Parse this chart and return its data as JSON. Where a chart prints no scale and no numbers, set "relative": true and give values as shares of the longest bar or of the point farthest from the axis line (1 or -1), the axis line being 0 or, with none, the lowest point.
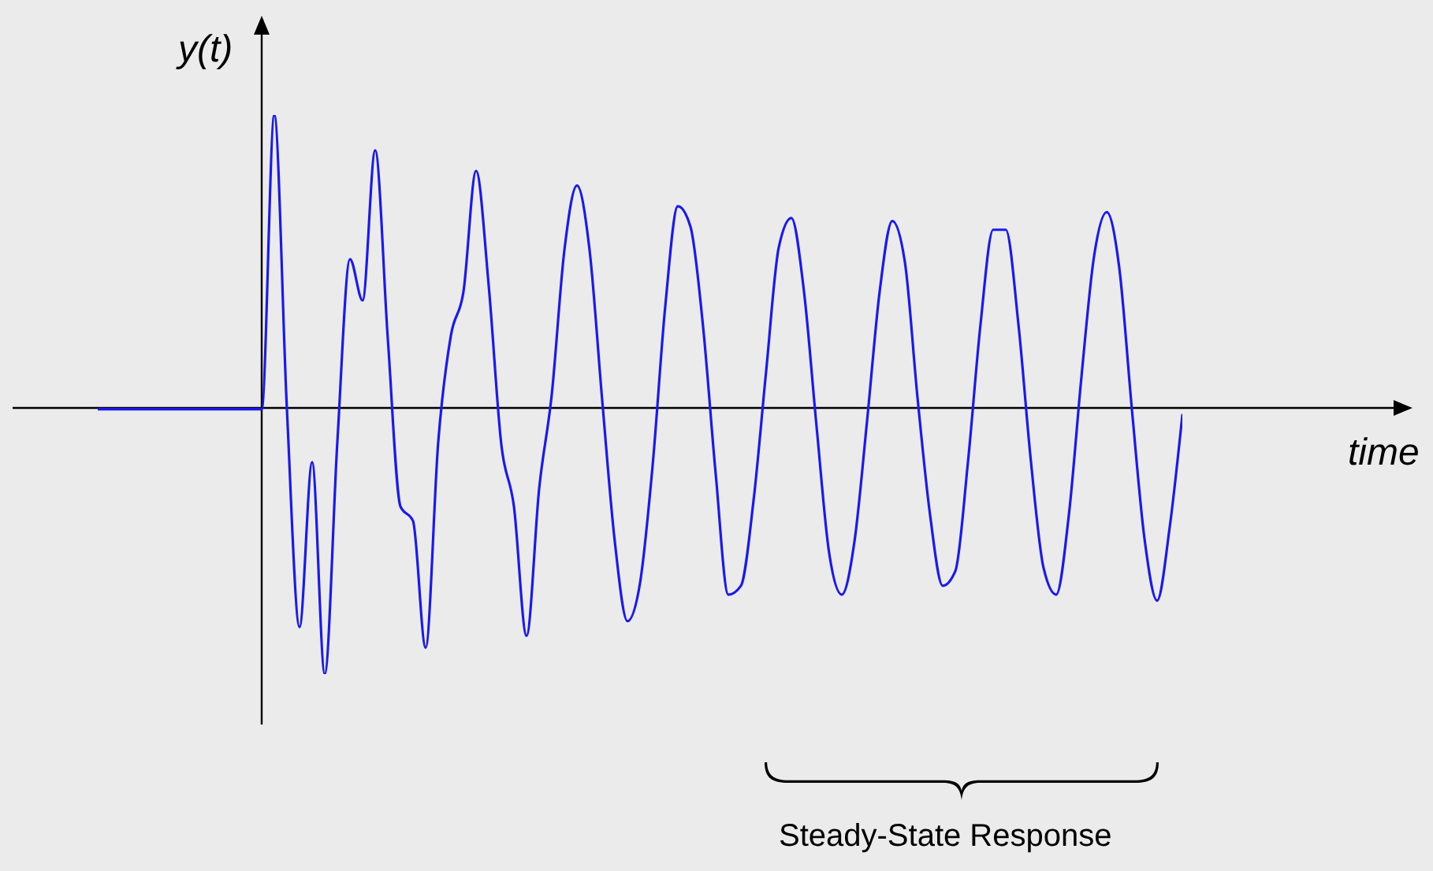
{
  "chart_data": {
    "type": "line",
    "relative": true,
    "xlabel": "time",
    "ylabel": "y(t)",
    "annotations": [
      "Steady-State Response"
    ],
    "categories": [
      null,
      null,
      null,
      null,
      null,
      null,
      null,
      null,
      null,
      null,
      null,
      null,
      null,
      null,
      null,
      null,
      null,
      null,
      null,
      null,
      null,
      null,
      null,
      null,
      null,
      null,
      null,
      null,
      null,
      null,
      null,
      null,
      null,
      null,
      null,
      null,
      null,
      null,
      null,
      null,
      null,
      null,
      null,
      null,
      null,
      null,
      null,
      null,
      null,
      null,
      null,
      null,
      null,
      null,
      null,
      null,
      null,
      null,
      null,
      null,
      null,
      null,
      null,
      null,
      null,
      null,
      null,
      null,
      null,
      null,
      null,
      null,
      null,
      null,
      null,
      null,
      null,
      null,
      null,
      null,
      null,
      null,
      null,
      null,
      null,
      null,
      null
    ],
    "series": [
      {
        "color": "#1a1aee",
        "values": [
          0,
          0,
          0,
          0,
          0,
          0,
          0,
          0,
          0,
          0,
          0,
          0,
          0,
          0,
          1.0,
          0,
          -0.74,
          -0.18,
          -0.9,
          -0.11,
          0.51,
          0.37,
          0.88,
          0.24,
          -0.33,
          -0.38,
          -0.81,
          -0.11,
          0.25,
          0.4,
          0.81,
          0.42,
          -0.12,
          -0.33,
          -0.77,
          -0.27,
          0.05,
          0.54,
          0.76,
          0.54,
          0.03,
          -0.45,
          -0.72,
          -0.59,
          -0.19,
          0.35,
          0.69,
          0.62,
          0.28,
          -0.22,
          -0.63,
          -0.6,
          -0.31,
          0.13,
          0.55,
          0.65,
          0.4,
          -0.06,
          -0.49,
          -0.63,
          -0.45,
          -0.04,
          0.4,
          0.64,
          0.5,
          0.04,
          -0.36,
          -0.6,
          -0.55,
          -0.18,
          0.29,
          0.61,
          0.61,
          0.29,
          -0.18,
          -0.54,
          -0.63,
          -0.36,
          0.11,
          0.52,
          0.67,
          0.48,
          0,
          -0.44,
          -0.65,
          -0.4,
          -0.02
        ]
      }
    ]
  }
}
